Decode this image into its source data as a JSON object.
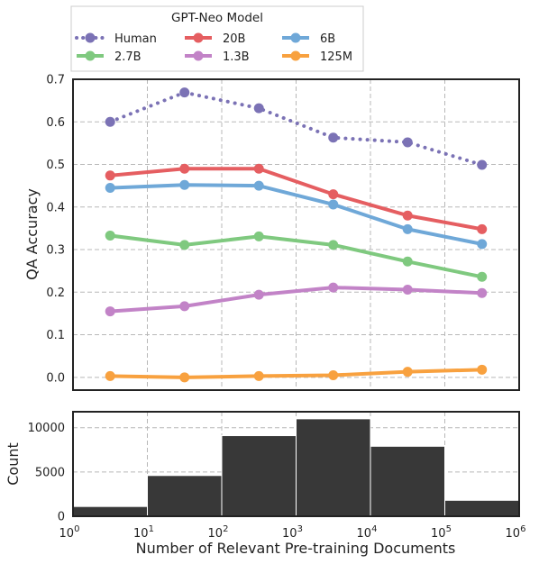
{
  "chart_data": [
    {
      "type": "line",
      "ylabel": "QA Accuracy",
      "xscale": "log",
      "xlim": [
        1,
        1000000
      ],
      "ylim": [
        -0.03,
        0.7
      ],
      "yticks": [
        "0.0",
        "0.1",
        "0.2",
        "0.3",
        "0.4",
        "0.5",
        "0.6",
        "0.7"
      ],
      "grid": true,
      "x": [
        3.16,
        31.6,
        316,
        3160,
        31600,
        316000
      ],
      "legend": {
        "title": "GPT-Neo Model",
        "placement": "top-left, above plot",
        "columns": 3
      },
      "series": [
        {
          "name": "Human",
          "color": "#7b72b5",
          "style": "dotted",
          "values": [
            0.6,
            0.669,
            0.632,
            0.563,
            0.552,
            0.499
          ]
        },
        {
          "name": "20B",
          "color": "#e55e61",
          "style": "solid",
          "values": [
            0.474,
            0.49,
            0.49,
            0.43,
            0.38,
            0.348
          ]
        },
        {
          "name": "6B",
          "color": "#6fa8d8",
          "style": "solid",
          "values": [
            0.445,
            0.452,
            0.45,
            0.406,
            0.348,
            0.313
          ]
        },
        {
          "name": "2.7B",
          "color": "#7fc97f",
          "style": "solid",
          "values": [
            0.333,
            0.311,
            0.331,
            0.311,
            0.272,
            0.236
          ]
        },
        {
          "name": "1.3B",
          "color": "#c283c7",
          "style": "solid",
          "values": [
            0.155,
            0.167,
            0.194,
            0.211,
            0.206,
            0.198
          ]
        },
        {
          "name": "125M",
          "color": "#f8a13f",
          "style": "solid",
          "values": [
            0.003,
            0.0,
            0.003,
            0.005,
            0.013,
            0.018
          ]
        }
      ]
    },
    {
      "type": "bar",
      "ylabel": "Count",
      "xlabel": "Number of Relevant Pre-training Documents",
      "xscale": "log",
      "xlim": [
        1,
        1000000
      ],
      "ylim": [
        0,
        11800
      ],
      "yticks": [
        "0",
        "5000",
        "10000"
      ],
      "xticks": [
        {
          "base": "10",
          "exp": "0"
        },
        {
          "base": "10",
          "exp": "1"
        },
        {
          "base": "10",
          "exp": "2"
        },
        {
          "base": "10",
          "exp": "3"
        },
        {
          "base": "10",
          "exp": "4"
        },
        {
          "base": "10",
          "exp": "5"
        },
        {
          "base": "10",
          "exp": "6"
        }
      ],
      "bar_color": "#383838",
      "bin_edges": [
        1,
        10,
        100,
        1000,
        10000,
        100000,
        1000000
      ],
      "values": [
        1100,
        4600,
        9100,
        11000,
        7900,
        1800
      ]
    }
  ]
}
